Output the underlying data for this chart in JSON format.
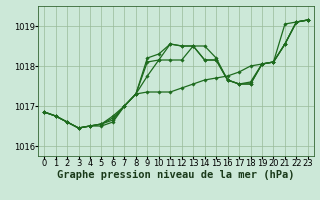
{
  "title": "Graphe pression niveau de la mer (hPa)",
  "hours": [
    0,
    1,
    2,
    3,
    4,
    5,
    6,
    7,
    8,
    9,
    10,
    11,
    12,
    13,
    14,
    15,
    16,
    17,
    18,
    19,
    20,
    21,
    22,
    23
  ],
  "series": [
    [
      1016.85,
      1016.75,
      1016.6,
      1016.45,
      1016.5,
      1016.5,
      1016.6,
      1017.0,
      1017.3,
      1017.35,
      1017.35,
      1017.35,
      1017.45,
      1017.55,
      1017.65,
      1017.7,
      1017.75,
      1017.85,
      1018.0,
      1018.05,
      1018.1,
      1019.05,
      1019.1,
      1019.15
    ],
    [
      1016.85,
      1016.75,
      1016.6,
      1016.45,
      1016.5,
      1016.55,
      1016.65,
      1017.0,
      1017.3,
      1017.75,
      1018.15,
      1018.55,
      1018.5,
      1018.5,
      1018.5,
      1018.2,
      1017.65,
      1017.55,
      1017.55,
      1018.05,
      1018.1,
      1018.55,
      1019.1,
      1019.15
    ],
    [
      1016.85,
      1016.75,
      1016.6,
      1016.45,
      1016.5,
      1016.55,
      1016.7,
      1017.0,
      1017.3,
      1018.2,
      1018.3,
      1018.55,
      1018.5,
      1018.5,
      1018.15,
      1018.15,
      1017.65,
      1017.55,
      1017.55,
      1018.05,
      1018.1,
      1018.55,
      1019.1,
      1019.15
    ],
    [
      1016.85,
      1016.75,
      1016.6,
      1016.45,
      1016.5,
      1016.55,
      1016.75,
      1017.0,
      1017.3,
      1018.1,
      1018.15,
      1018.15,
      1018.15,
      1018.5,
      1018.15,
      1018.15,
      1017.65,
      1017.55,
      1017.6,
      1018.05,
      1018.1,
      1018.55,
      1019.1,
      1019.15
    ]
  ],
  "line_color": "#1e6b1e",
  "marker": "D",
  "marker_size": 1.8,
  "linewidth": 0.9,
  "background_color": "#cce8d8",
  "grid_color": "#99bb99",
  "ylim": [
    1015.75,
    1019.5
  ],
  "yticks": [
    1016,
    1017,
    1018,
    1019
  ],
  "xlim": [
    -0.5,
    23.5
  ],
  "title_fontsize": 7.5,
  "tick_fontsize": 6.0
}
